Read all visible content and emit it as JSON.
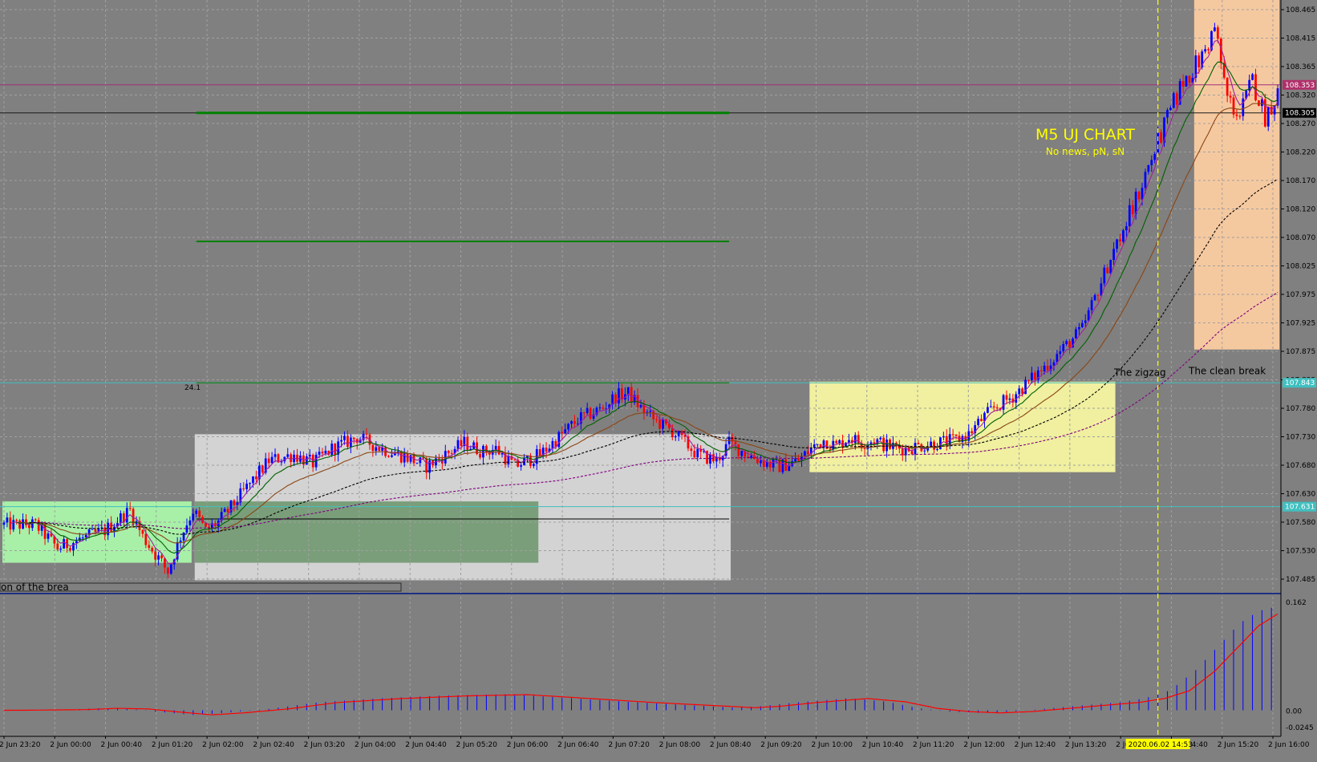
{
  "chart_data": {
    "type": "candlestick",
    "title": "M5 UJ CHART",
    "subtitle": "No news, pN, sN",
    "price_axis": {
      "ticks": [
        "108.465",
        "108.415",
        "108.365",
        "108.320",
        "108.270",
        "108.220",
        "108.170",
        "108.120",
        "108.070",
        "108.025",
        "107.975",
        "107.925",
        "107.875",
        "107.825",
        "107.780",
        "107.730",
        "107.680",
        "107.630",
        "107.580",
        "107.530",
        "107.485"
      ],
      "range": [
        107.485,
        108.49
      ]
    },
    "indicator_axis": {
      "ticks": [
        "0.162",
        "0.00",
        "-0.0245"
      ],
      "range": [
        -0.0245,
        0.162
      ]
    },
    "time_labels": [
      "2 Jun 23:20",
      "2 Jun 00:00",
      "2 Jun 00:40",
      "2 Jun 01:20",
      "2 Jun 02:00",
      "2 Jun 02:40",
      "2 Jun 03:20",
      "2 Jun 04:00",
      "2 Jun 04:40",
      "2 Jun 05:20",
      "2 Jun 06:00",
      "2 Jun 06:40",
      "2 Jun 07:20",
      "2 Jun 08:00",
      "2 Jun 08:40",
      "2 Jun 09:20",
      "2 Jun 10:00",
      "2 Jun 10:40",
      "2 Jun 11:20",
      "2 Jun 12:00",
      "2 Jun 12:40",
      "2 Jun 13:20",
      "2 Jun 14:00",
      "2 Jun 14:40",
      "2 Jun 15:20",
      "2 Jun 16:00"
    ],
    "time_cursor_label": "2020.06.02 14:53",
    "price_tags": [
      {
        "price": 108.353,
        "text": "108.353",
        "bg": "#b0306a",
        "fg": "#ffffff"
      },
      {
        "price": 108.305,
        "text": "108.305",
        "bg": "#000000",
        "fg": "#ffffff"
      },
      {
        "price": 107.843,
        "text": "107.843",
        "bg": "#40c0c0",
        "fg": "#ffffff"
      },
      {
        "price": 107.631,
        "text": "107.631",
        "bg": "#40c0c0",
        "fg": "#ffffff"
      }
    ],
    "horizontal_lines": [
      {
        "price": 108.353,
        "color": "#a03078",
        "style": "solid"
      },
      {
        "price": 108.305,
        "color": "#1a1a1a",
        "style": "solid"
      },
      {
        "price": 107.843,
        "color": "#40c0c0",
        "style": "solid"
      },
      {
        "price": 107.631,
        "color": "#40c0c0",
        "style": "solid"
      }
    ],
    "level_segments": [
      {
        "price": 108.305,
        "color": "#008000",
        "width": 3
      },
      {
        "price": 108.085,
        "color": "#008000",
        "width": 2
      },
      {
        "price": 107.843,
        "color": "#008000",
        "width": 1
      }
    ],
    "zones": [
      {
        "name": "green-zone",
        "color": "#a8f0a8",
        "top": 107.64,
        "bottom": 107.535
      },
      {
        "name": "grey-zone",
        "color": "#d3d3d3",
        "top": 107.755,
        "bottom": 107.505
      },
      {
        "name": "dark-green-zone",
        "color": "#7a9e7a",
        "top": 107.64,
        "bottom": 107.535
      },
      {
        "name": "yellow-zone",
        "color": "#f0f0a0",
        "top": 107.845,
        "bottom": 107.69
      },
      {
        "name": "orange-zone",
        "color": "#f5c9a0",
        "top": 108.49,
        "bottom": 107.9
      }
    ],
    "annotations": [
      {
        "text": "The zigzag",
        "price": 107.855
      },
      {
        "text": "The clean break",
        "price": 107.858
      },
      {
        "text": "24.1",
        "price": 107.842
      }
    ],
    "partial_label": "on of the brea",
    "colors": {
      "background": "#808080",
      "bull": "#0000ff",
      "bear": "#ff0000",
      "grid": "#a0a0a0",
      "ma_fast": "#a020a0",
      "ma_mid": "#006000",
      "ma_slow": "#8b4513",
      "ma_long": "#000000",
      "ma_vlong": "#800080",
      "histogram": "#0000ff",
      "signal": "#ff0000",
      "cursor": "#ffff00"
    },
    "price_path": [
      [
        0,
        107.6
      ],
      [
        10,
        107.6
      ],
      [
        17,
        107.56
      ],
      [
        24,
        107.575
      ],
      [
        32,
        107.59
      ],
      [
        40,
        107.625
      ],
      [
        44,
        107.58
      ],
      [
        48,
        107.55
      ],
      [
        52,
        107.52
      ],
      [
        56,
        107.58
      ],
      [
        60,
        107.625
      ],
      [
        64,
        107.59
      ],
      [
        68,
        107.605
      ],
      [
        72,
        107.63
      ],
      [
        78,
        107.67
      ],
      [
        84,
        107.71
      ],
      [
        92,
        107.72
      ],
      [
        98,
        107.705
      ],
      [
        104,
        107.73
      ],
      [
        112,
        107.75
      ],
      [
        116,
        107.74
      ],
      [
        120,
        107.73
      ],
      [
        128,
        107.715
      ],
      [
        134,
        107.7
      ],
      [
        140,
        107.72
      ],
      [
        146,
        107.74
      ],
      [
        152,
        107.725
      ],
      [
        156,
        107.73
      ],
      [
        162,
        107.7
      ],
      [
        170,
        107.72
      ],
      [
        178,
        107.76
      ],
      [
        182,
        107.78
      ],
      [
        190,
        107.8
      ],
      [
        194,
        107.82
      ],
      [
        198,
        107.825
      ],
      [
        202,
        107.8
      ],
      [
        206,
        107.78
      ],
      [
        212,
        107.76
      ],
      [
        216,
        107.74
      ],
      [
        220,
        107.72
      ],
      [
        226,
        107.71
      ],
      [
        230,
        107.74
      ],
      [
        236,
        107.72
      ],
      [
        242,
        107.705
      ],
      [
        246,
        107.7
      ],
      [
        252,
        107.71
      ],
      [
        256,
        107.73
      ],
      [
        260,
        107.745
      ],
      [
        264,
        107.735
      ],
      [
        268,
        107.75
      ],
      [
        272,
        107.74
      ],
      [
        276,
        107.745
      ],
      [
        280,
        107.735
      ],
      [
        286,
        107.73
      ],
      [
        290,
        107.735
      ],
      [
        296,
        107.74
      ],
      [
        302,
        107.745
      ],
      [
        306,
        107.755
      ],
      [
        310,
        107.78
      ],
      [
        314,
        107.8
      ],
      [
        320,
        107.82
      ],
      [
        324,
        107.84
      ],
      [
        332,
        107.88
      ],
      [
        342,
        107.935
      ],
      [
        352,
        108.07
      ],
      [
        358,
        108.14
      ],
      [
        362,
        108.2
      ],
      [
        368,
        108.28
      ],
      [
        374,
        108.36
      ],
      [
        380,
        108.4
      ],
      [
        384,
        108.45
      ],
      [
        388,
        108.33
      ],
      [
        392,
        108.3
      ],
      [
        396,
        108.36
      ],
      [
        400,
        108.3
      ],
      [
        404,
        108.34
      ]
    ],
    "indicator_path": [
      [
        0,
        0.0
      ],
      [
        20,
        0.001
      ],
      [
        30,
        0.003
      ],
      [
        40,
        0.002
      ],
      [
        48,
        -0.002
      ],
      [
        60,
        -0.007
      ],
      [
        70,
        -0.004
      ],
      [
        84,
        0.002
      ],
      [
        100,
        0.012
      ],
      [
        120,
        0.018
      ],
      [
        140,
        0.022
      ],
      [
        160,
        0.024
      ],
      [
        180,
        0.018
      ],
      [
        200,
        0.012
      ],
      [
        220,
        0.007
      ],
      [
        232,
        0.004
      ],
      [
        240,
        0.006
      ],
      [
        252,
        0.012
      ],
      [
        268,
        0.018
      ],
      [
        280,
        0.013
      ],
      [
        290,
        0.003
      ],
      [
        300,
        -0.002
      ],
      [
        310,
        -0.004
      ],
      [
        320,
        -0.002
      ],
      [
        332,
        0.003
      ],
      [
        344,
        0.008
      ],
      [
        354,
        0.012
      ],
      [
        362,
        0.018
      ],
      [
        370,
        0.03
      ],
      [
        378,
        0.06
      ],
      [
        386,
        0.1
      ],
      [
        392,
        0.13
      ],
      [
        398,
        0.148
      ],
      [
        404,
        0.155
      ]
    ]
  }
}
